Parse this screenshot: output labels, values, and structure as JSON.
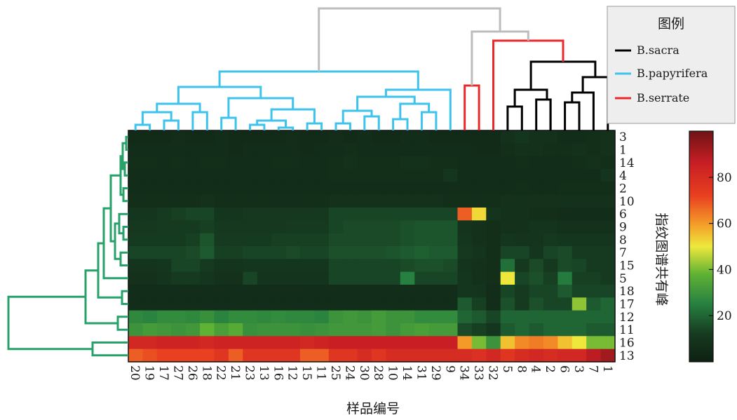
{
  "chart_data": {
    "type": "heatmap",
    "xlabel": "样品编号",
    "ylabel": "指纹图谱共有峰",
    "columns": [
      "20",
      "19",
      "17",
      "27",
      "26",
      "18",
      "22",
      "21",
      "23",
      "13",
      "16",
      "12",
      "15",
      "11",
      "25",
      "24",
      "30",
      "28",
      "10",
      "14",
      "31",
      "29",
      "9",
      "34",
      "33",
      "32",
      "5",
      "8",
      "4",
      "2",
      "6",
      "3",
      "7",
      "1"
    ],
    "rows": [
      "3",
      "1",
      "14",
      "4",
      "2",
      "10",
      "6",
      "9",
      "8",
      "7",
      "15",
      "5",
      "18",
      "17",
      "12",
      "11",
      "16",
      "13"
    ],
    "values": [
      [
        5,
        5,
        5,
        6,
        5,
        5,
        6,
        5,
        5,
        5,
        5,
        6,
        5,
        5,
        6,
        5,
        6,
        5,
        5,
        6,
        6,
        5,
        5,
        5,
        5,
        5,
        8,
        10,
        8,
        8,
        6,
        6,
        7,
        8
      ],
      [
        6,
        6,
        6,
        6,
        6,
        6,
        6,
        5,
        6,
        6,
        6,
        6,
        5,
        6,
        6,
        7,
        6,
        6,
        6,
        6,
        6,
        6,
        6,
        6,
        5,
        5,
        7,
        8,
        8,
        7,
        7,
        8,
        7,
        8
      ],
      [
        7,
        7,
        6,
        7,
        6,
        7,
        7,
        6,
        6,
        6,
        7,
        7,
        6,
        6,
        7,
        8,
        7,
        7,
        7,
        8,
        8,
        7,
        7,
        6,
        6,
        6,
        6,
        7,
        6,
        6,
        6,
        7,
        8,
        7
      ],
      [
        6,
        6,
        6,
        6,
        6,
        6,
        6,
        6,
        6,
        6,
        6,
        6,
        6,
        6,
        7,
        7,
        7,
        7,
        7,
        7,
        7,
        7,
        10,
        6,
        6,
        6,
        6,
        6,
        6,
        6,
        6,
        6,
        6,
        9
      ],
      [
        6,
        6,
        6,
        6,
        6,
        6,
        6,
        6,
        6,
        6,
        6,
        6,
        6,
        6,
        6,
        6,
        6,
        6,
        6,
        6,
        6,
        6,
        6,
        6,
        6,
        6,
        6,
        7,
        6,
        6,
        7,
        7,
        7,
        7
      ],
      [
        7,
        7,
        7,
        7,
        7,
        8,
        7,
        7,
        7,
        7,
        7,
        7,
        7,
        7,
        8,
        8,
        8,
        8,
        8,
        8,
        8,
        8,
        7,
        7,
        7,
        7,
        8,
        8,
        8,
        8,
        8,
        8,
        8,
        8
      ],
      [
        10,
        10,
        12,
        13,
        14,
        14,
        10,
        10,
        11,
        11,
        11,
        11,
        11,
        11,
        14,
        14,
        14,
        14,
        14,
        14,
        14,
        14,
        14,
        68,
        52,
        9,
        8,
        8,
        7,
        7,
        6,
        6,
        6,
        6
      ],
      [
        11,
        11,
        12,
        12,
        12,
        13,
        11,
        11,
        11,
        11,
        11,
        12,
        12,
        12,
        14,
        15,
        15,
        15,
        15,
        16,
        17,
        17,
        17,
        9,
        8,
        7,
        8,
        8,
        9,
        9,
        8,
        8,
        8,
        8
      ],
      [
        12,
        12,
        12,
        12,
        13,
        17,
        12,
        12,
        12,
        12,
        13,
        13,
        13,
        13,
        15,
        15,
        15,
        15,
        15,
        16,
        17,
        17,
        17,
        10,
        8,
        7,
        10,
        9,
        9,
        11,
        10,
        10,
        10,
        10
      ],
      [
        14,
        14,
        14,
        14,
        15,
        18,
        13,
        13,
        14,
        14,
        14,
        15,
        14,
        14,
        16,
        16,
        16,
        16,
        17,
        18,
        19,
        18,
        18,
        11,
        9,
        7,
        14,
        14,
        10,
        14,
        15,
        12,
        12,
        12
      ],
      [
        9,
        9,
        10,
        14,
        14,
        12,
        9,
        9,
        10,
        10,
        10,
        10,
        10,
        10,
        14,
        14,
        14,
        14,
        14,
        15,
        16,
        16,
        15,
        9,
        8,
        7,
        22,
        11,
        15,
        11,
        15,
        14,
        12,
        12
      ],
      [
        8,
        8,
        9,
        12,
        12,
        10,
        8,
        8,
        14,
        9,
        9,
        9,
        9,
        9,
        14,
        14,
        14,
        14,
        14,
        25,
        14,
        14,
        14,
        10,
        8,
        7,
        50,
        14,
        16,
        13,
        24,
        13,
        13,
        12
      ],
      [
        6,
        6,
        6,
        6,
        6,
        6,
        6,
        6,
        6,
        6,
        6,
        6,
        6,
        6,
        6,
        6,
        6,
        6,
        6,
        6,
        6,
        6,
        6,
        10,
        9,
        6,
        14,
        12,
        14,
        14,
        18,
        14,
        14,
        14
      ],
      [
        6,
        6,
        6,
        6,
        6,
        6,
        6,
        6,
        6,
        6,
        6,
        6,
        6,
        6,
        6,
        6,
        6,
        6,
        6,
        6,
        6,
        6,
        6,
        18,
        13,
        6,
        16,
        12,
        16,
        14,
        14,
        42,
        18,
        20
      ],
      [
        27,
        26,
        28,
        28,
        27,
        29,
        26,
        28,
        28,
        27,
        28,
        27,
        27,
        26,
        30,
        31,
        30,
        32,
        30,
        30,
        28,
        28,
        28,
        20,
        18,
        14,
        20,
        20,
        20,
        20,
        20,
        20,
        20,
        20
      ],
      [
        30,
        32,
        31,
        30,
        31,
        38,
        33,
        36,
        29,
        30,
        30,
        30,
        29,
        30,
        31,
        31,
        31,
        32,
        30,
        32,
        33,
        32,
        32,
        15,
        13,
        10,
        18,
        20,
        18,
        20,
        20,
        20,
        18,
        18
      ],
      [
        82,
        82,
        84,
        84,
        84,
        82,
        84,
        84,
        84,
        84,
        84,
        84,
        82,
        84,
        86,
        86,
        86,
        86,
        86,
        86,
        86,
        86,
        86,
        60,
        40,
        30,
        55,
        62,
        64,
        62,
        55,
        50,
        40,
        40
      ],
      [
        68,
        70,
        72,
        72,
        72,
        72,
        76,
        68,
        76,
        76,
        76,
        76,
        68,
        68,
        76,
        76,
        80,
        76,
        80,
        80,
        80,
        80,
        80,
        80,
        78,
        82,
        76,
        80,
        82,
        80,
        82,
        82,
        88,
        92
      ]
    ],
    "colorbar": {
      "min": 0,
      "max": 100,
      "ticks": [
        20,
        40,
        60,
        80
      ]
    },
    "legend": {
      "title": "图例",
      "placement": "top-right",
      "entries": [
        {
          "label": "B.sacra",
          "color": "#000000"
        },
        {
          "label": "B.papyrifera",
          "color": "#3ec3ec"
        },
        {
          "label": "B.serrate",
          "color": "#e8282a"
        }
      ]
    },
    "dendrogram_colors": {
      "row": "#27a06a",
      "column_link": "#bdbdbd"
    }
  }
}
